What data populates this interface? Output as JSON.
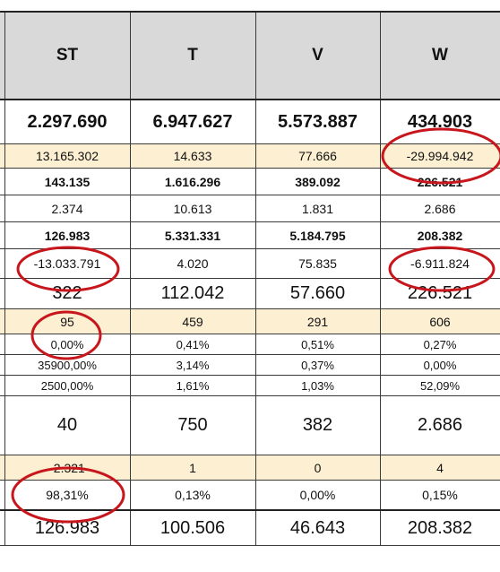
{
  "headers": [
    "ST",
    "T",
    "V",
    "W"
  ],
  "rows": [
    {
      "cells": [
        "2.297.690",
        "6.947.627",
        "5.573.887",
        "434.903"
      ]
    },
    {
      "cells": [
        "13.165.302",
        "14.633",
        "77.666",
        "-29.994.942"
      ]
    },
    {
      "cells": [
        "143.135",
        "1.616.296",
        "389.092",
        "226.521"
      ]
    },
    {
      "cells": [
        "2.374",
        "10.613",
        "1.831",
        "2.686"
      ]
    },
    {
      "cells": [
        "126.983",
        "5.331.331",
        "5.184.795",
        "208.382"
      ]
    },
    {
      "cells": [
        "-13.033.791",
        "4.020",
        "75.835",
        "-6.911.824"
      ]
    },
    {
      "cells": [
        "322",
        "112.042",
        "57.660",
        "226.521"
      ]
    },
    {
      "cells": [
        "95",
        "459",
        "291",
        "606"
      ]
    },
    {
      "cells": [
        "0,00%",
        "0,41%",
        "0,51%",
        "0,27%"
      ]
    },
    {
      "cells": [
        "35900,00%",
        "3,14%",
        "0,37%",
        "0,00%"
      ]
    },
    {
      "cells": [
        "2500,00%",
        "1,61%",
        "1,03%",
        "52,09%"
      ]
    },
    {
      "cells": [
        "40",
        "750",
        "382",
        "2.686"
      ]
    },
    {
      "cells": [
        "-2.321",
        "1",
        "0",
        "4"
      ]
    },
    {
      "cells": [
        "98,31%",
        "0,13%",
        "0,00%",
        "0,15%"
      ]
    },
    {
      "cells": [
        "126.983",
        "100.506",
        "46.643",
        "208.382"
      ]
    }
  ],
  "colors": {
    "highlight_row": "#fdf0d2",
    "header_bg": "#d9d9d9",
    "annotation_circle": "#c8161d"
  }
}
